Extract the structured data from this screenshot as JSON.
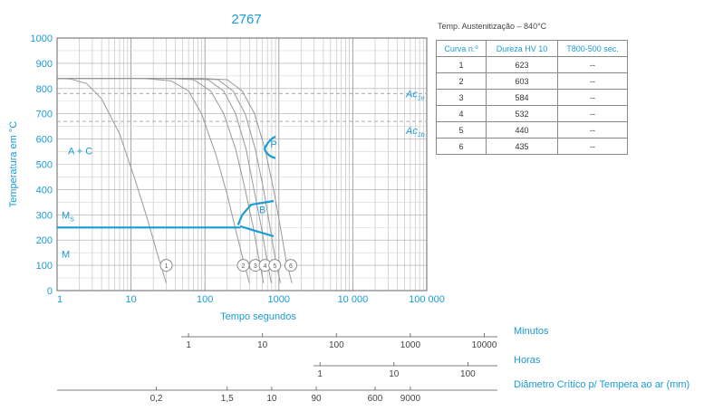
{
  "chart_data": {
    "type": "line",
    "title": "2767",
    "ylabel": "Temperatura em °C",
    "xlabel": "Tempo segundos",
    "xscale": "log",
    "xlim": [
      1,
      100000
    ],
    "ylim": [
      0,
      1000
    ],
    "x_tick_labels": [
      "1",
      "10",
      "100",
      "1000",
      "10 000",
      "100 000"
    ],
    "y_tick_labels": [
      "0",
      "100",
      "200",
      "300",
      "400",
      "500",
      "600",
      "700",
      "800",
      "900",
      "1000"
    ],
    "reference_lines": [
      {
        "name": "Ac1e",
        "label_main": "Ac",
        "label_sub": "1e",
        "y": 780
      },
      {
        "name": "Ac1b",
        "label_main": "Ac",
        "label_sub": "1b",
        "y": 670
      }
    ],
    "region_labels": {
      "ac": "A + C",
      "ms": "M",
      "ms_sub": "S",
      "m": "M",
      "b": "B",
      "p": "P"
    },
    "ms_temperature": 250,
    "cooling_curves": [
      {
        "id": "1",
        "points": [
          [
            1,
            840
          ],
          [
            1.5,
            838
          ],
          [
            2.5,
            820
          ],
          [
            4,
            760
          ],
          [
            7,
            620
          ],
          [
            11,
            450
          ],
          [
            16,
            300
          ],
          [
            22,
            160
          ],
          [
            30,
            30
          ]
        ]
      },
      {
        "id": "2",
        "points": [
          [
            1,
            840
          ],
          [
            15,
            840
          ],
          [
            35,
            830
          ],
          [
            60,
            790
          ],
          [
            90,
            700
          ],
          [
            140,
            540
          ],
          [
            200,
            380
          ],
          [
            260,
            240
          ],
          [
            330,
            120
          ],
          [
            400,
            30
          ]
        ]
      },
      {
        "id": "3",
        "points": [
          [
            1,
            840
          ],
          [
            30,
            840
          ],
          [
            70,
            835
          ],
          [
            120,
            790
          ],
          [
            180,
            700
          ],
          [
            260,
            560
          ],
          [
            350,
            400
          ],
          [
            450,
            250
          ],
          [
            540,
            120
          ],
          [
            620,
            30
          ]
        ]
      },
      {
        "id": "4",
        "points": [
          [
            1,
            840
          ],
          [
            50,
            840
          ],
          [
            110,
            835
          ],
          [
            180,
            790
          ],
          [
            260,
            700
          ],
          [
            360,
            560
          ],
          [
            460,
            400
          ],
          [
            580,
            250
          ],
          [
            690,
            120
          ],
          [
            790,
            30
          ]
        ]
      },
      {
        "id": "5",
        "points": [
          [
            1,
            840
          ],
          [
            70,
            840
          ],
          [
            150,
            835
          ],
          [
            240,
            790
          ],
          [
            350,
            700
          ],
          [
            480,
            560
          ],
          [
            620,
            400
          ],
          [
            760,
            250
          ],
          [
            900,
            120
          ],
          [
            1050,
            30
          ]
        ]
      },
      {
        "id": "6",
        "points": [
          [
            1,
            840
          ],
          [
            90,
            840
          ],
          [
            200,
            835
          ],
          [
            320,
            790
          ],
          [
            470,
            700
          ],
          [
            650,
            560
          ],
          [
            850,
            400
          ],
          [
            1050,
            250
          ],
          [
            1250,
            120
          ],
          [
            1500,
            30
          ]
        ]
      }
    ],
    "curve_markers": [
      {
        "label": "1",
        "x": 30
      },
      {
        "label": "2",
        "x": 330
      },
      {
        "label": "3",
        "x": 480
      },
      {
        "label": "4",
        "x": 650
      },
      {
        "label": "5",
        "x": 880
      },
      {
        "label": "6",
        "x": 1450
      }
    ],
    "marker_y": 100,
    "phase_lines": [
      {
        "name": "ms-line",
        "points": [
          [
            1,
            250
          ],
          [
            300,
            250
          ]
        ]
      },
      {
        "name": "bainite-start",
        "points": [
          [
            280,
            260
          ],
          [
            320,
            300
          ],
          [
            420,
            340
          ],
          [
            850,
            355
          ]
        ]
      },
      {
        "name": "bainite-finish",
        "points": [
          [
            300,
            255
          ],
          [
            500,
            235
          ],
          [
            850,
            215
          ]
        ]
      },
      {
        "name": "pearlite-nose",
        "points": [
          [
            900,
            610
          ],
          [
            700,
            595
          ],
          [
            640,
            560
          ],
          [
            700,
            530
          ],
          [
            900,
            525
          ]
        ]
      }
    ],
    "scales": [
      {
        "name": "Minutos",
        "ticks": [
          "1",
          "10",
          "100",
          "1000",
          "10000"
        ],
        "x": [
          60,
          600,
          6000,
          60000,
          600000
        ]
      },
      {
        "name": "Horas",
        "ticks": [
          "1",
          "10",
          "100"
        ],
        "x": [
          3600,
          36000,
          360000
        ]
      },
      {
        "name": "Diâmetro Crítico p/ Tempera ao ar (mm)",
        "ticks": [
          "0,2",
          "1,5",
          "10",
          "90",
          "600",
          "9000"
        ],
        "x": [
          22,
          200,
          800,
          3200,
          20000,
          60000
        ]
      }
    ]
  },
  "table": {
    "title": "Temp. Austenitização – 840°C",
    "headers": [
      "Curva n.º",
      "Dureza HV 10",
      "T800-500 sec."
    ],
    "rows": [
      [
        "1",
        "623",
        "--"
      ],
      [
        "2",
        "603",
        "--"
      ],
      [
        "3",
        "584",
        "--"
      ],
      [
        "4",
        "532",
        "--"
      ],
      [
        "5",
        "440",
        "--"
      ],
      [
        "6",
        "435",
        "--"
      ]
    ]
  },
  "colors": {
    "accent": "#1a9ad6",
    "curve": "#999999",
    "grid": "#bbbbbb",
    "axis": "#666666"
  }
}
